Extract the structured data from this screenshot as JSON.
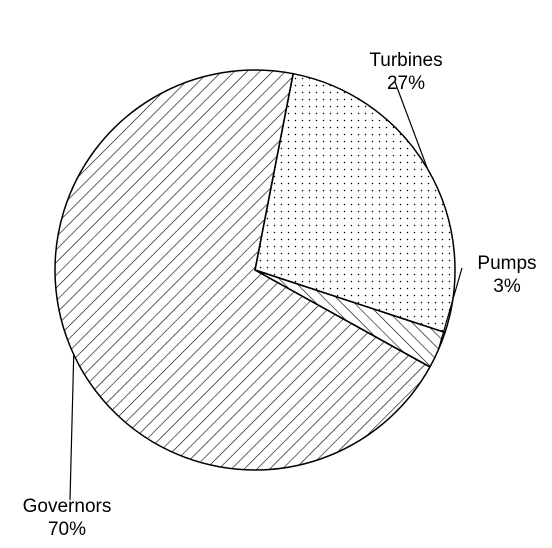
{
  "chart_data": {
    "type": "pie",
    "slices": [
      {
        "name": "Turbines",
        "value": 27,
        "value_label": "27%",
        "fill": "dots"
      },
      {
        "name": "Pumps",
        "value": 3,
        "value_label": "3%",
        "fill": "hatch-forward"
      },
      {
        "name": "Governors",
        "value": 70,
        "value_label": "70%",
        "fill": "hatch-back"
      }
    ],
    "colors": {
      "line": "#000000",
      "background": "#ffffff"
    }
  }
}
